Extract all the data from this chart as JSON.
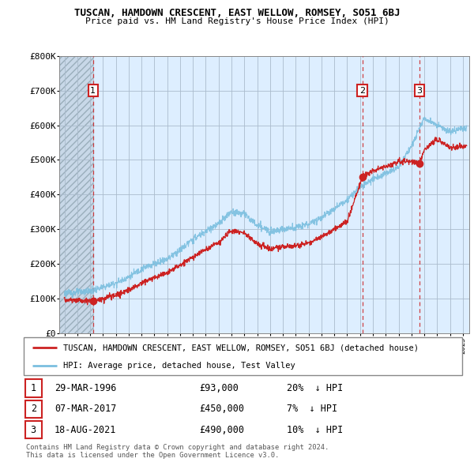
{
  "title": "TUSCAN, HAMDOWN CRESCENT, EAST WELLOW, ROMSEY, SO51 6BJ",
  "subtitle": "Price paid vs. HM Land Registry's House Price Index (HPI)",
  "ylim": [
    0,
    800000
  ],
  "yticks": [
    0,
    100000,
    200000,
    300000,
    400000,
    500000,
    600000,
    700000,
    800000
  ],
  "ytick_labels": [
    "£0",
    "£100K",
    "£200K",
    "£300K",
    "£400K",
    "£500K",
    "£600K",
    "£700K",
    "£800K"
  ],
  "xlim_start": 1993.6,
  "xlim_end": 2025.5,
  "hpi_color": "#7bbfdf",
  "price_color": "#cc2222",
  "background_color": "#ddeeff",
  "grid_color": "#aabbcc",
  "legend_label_price": "TUSCAN, HAMDOWN CRESCENT, EAST WELLOW, ROMSEY, SO51 6BJ (detached house)",
  "legend_label_hpi": "HPI: Average price, detached house, Test Valley",
  "sales": [
    {
      "num": 1,
      "date": "29-MAR-1996",
      "price": 93000,
      "x": 1996.23,
      "pct": "20%",
      "dir": "↓"
    },
    {
      "num": 2,
      "date": "07-MAR-2017",
      "price": 450000,
      "x": 2017.18,
      "pct": "7%",
      "dir": "↓"
    },
    {
      "num": 3,
      "date": "18-AUG-2021",
      "price": 490000,
      "x": 2021.63,
      "pct": "10%",
      "dir": "↓"
    }
  ],
  "footnote1": "Contains HM Land Registry data © Crown copyright and database right 2024.",
  "footnote2": "This data is licensed under the Open Government Licence v3.0."
}
